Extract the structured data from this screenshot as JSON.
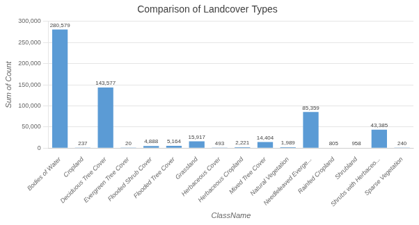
{
  "chart_data": {
    "type": "bar",
    "title": "Comparison of Landcover Types",
    "xlabel": "ClassName",
    "ylabel": "Sum of Count",
    "categories": [
      "Bodies of Water",
      "Cropland",
      "Deciduous Tree Cover",
      "Evergreen Tree Cover",
      "Flooded Shrub Cover",
      "Flooded Tree Cover",
      "Grassland",
      "Herbaceous Cover",
      "Herbaceous Cropland",
      "Mixed Tree Cover",
      "Natural Vegetation",
      "Needleleaved Everge...",
      "Rainfed Cropland",
      "Shrubland",
      "Shrubs with Herbaceo...",
      "Sparse Vegetation"
    ],
    "values": [
      280579,
      237,
      143577,
      20,
      4888,
      5164,
      15917,
      493,
      2221,
      14404,
      1989,
      85359,
      805,
      958,
      43385,
      240
    ],
    "value_labels": [
      "280,579",
      "237",
      "143,577",
      "20",
      "4,888",
      "5,164",
      "15,917",
      "493",
      "2,221",
      "14,404",
      "1,989",
      "85,359",
      "805",
      "958",
      "43,385",
      "240"
    ],
    "data_labels": true,
    "color": "#5B9BD5",
    "ylim": [
      0,
      300000
    ],
    "yticks": [
      0,
      {
        "value": 50000,
        "label": "50,000"
      },
      {
        "value": 100000,
        "label": "100,000"
      },
      {
        "value": 150000,
        "label": "150,000"
      },
      {
        "value": 200000,
        "label": "200,000"
      },
      {
        "value": 250000,
        "label": "250,000"
      },
      {
        "value": 300000,
        "label": "300,000"
      }
    ],
    "grid": true
  }
}
